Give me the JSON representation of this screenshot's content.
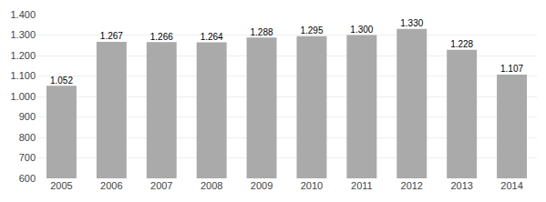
{
  "chart_data": {
    "type": "bar",
    "categories": [
      "2005",
      "2006",
      "2007",
      "2008",
      "2009",
      "2010",
      "2011",
      "2012",
      "2013",
      "2014"
    ],
    "values": [
      1052,
      1267,
      1266,
      1264,
      1288,
      1295,
      1300,
      1330,
      1228,
      1107
    ],
    "value_labels": [
      "1.052",
      "1.267",
      "1.266",
      "1.264",
      "1.288",
      "1.295",
      "1.300",
      "1.330",
      "1.228",
      "1.107"
    ],
    "data_labels": true,
    "color": "#aaaaaa",
    "ylim": [
      600,
      1400
    ],
    "yticks": [
      600,
      700,
      800,
      900,
      {
        "value": 1000,
        "label": "1.000"
      },
      {
        "value": 1100,
        "label": "1.100"
      },
      {
        "value": 1200,
        "label": "1.200"
      },
      {
        "value": 1300,
        "label": "1.300"
      },
      {
        "value": 1400,
        "label": "1.400"
      }
    ],
    "grid": true
  }
}
